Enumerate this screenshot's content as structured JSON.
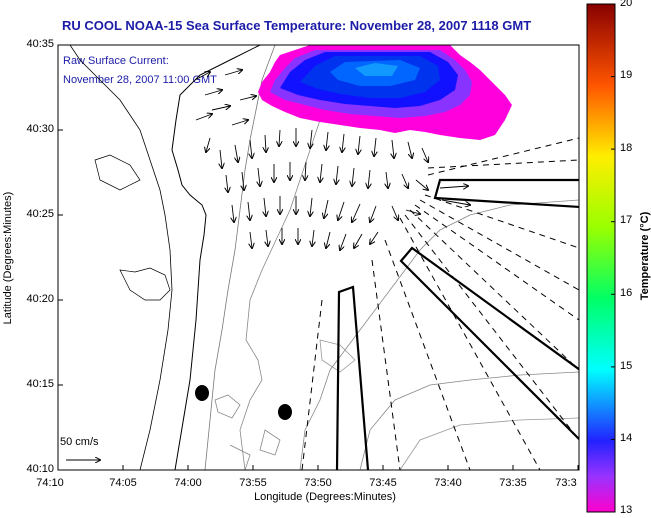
{
  "title": "RU COOL  NOAA-15  Sea Surface Temperature:  November 28, 2007 1118 GMT",
  "subtitle_line1": "Raw Surface Current:",
  "subtitle_line2": "November 28, 2007 11:00 GMT",
  "xlabel": "Longitude (Degrees:Minutes)",
  "ylabel": "Latitude (Degrees:Minutes)",
  "colorbar_label": "Temperature (°C)",
  "scale_label": "50 cm/s",
  "colors": {
    "title": "#1c1ca8",
    "land": "#ffffff",
    "coast": "#000000"
  },
  "chart_data": {
    "type": "map",
    "xticks": [
      "74:10",
      "74:05",
      "74:00",
      "73:55",
      "73:50",
      "73:45",
      "73:40",
      "73:35",
      "73:3"
    ],
    "yticks": [
      "40:35",
      "40:30",
      "40:25",
      "40:20",
      "40:15",
      "40:10"
    ],
    "colorbar": {
      "min": 13,
      "max": 20,
      "ticks": [
        "20",
        "19",
        "18",
        "17",
        "16",
        "15",
        "14",
        "13"
      ]
    }
  }
}
